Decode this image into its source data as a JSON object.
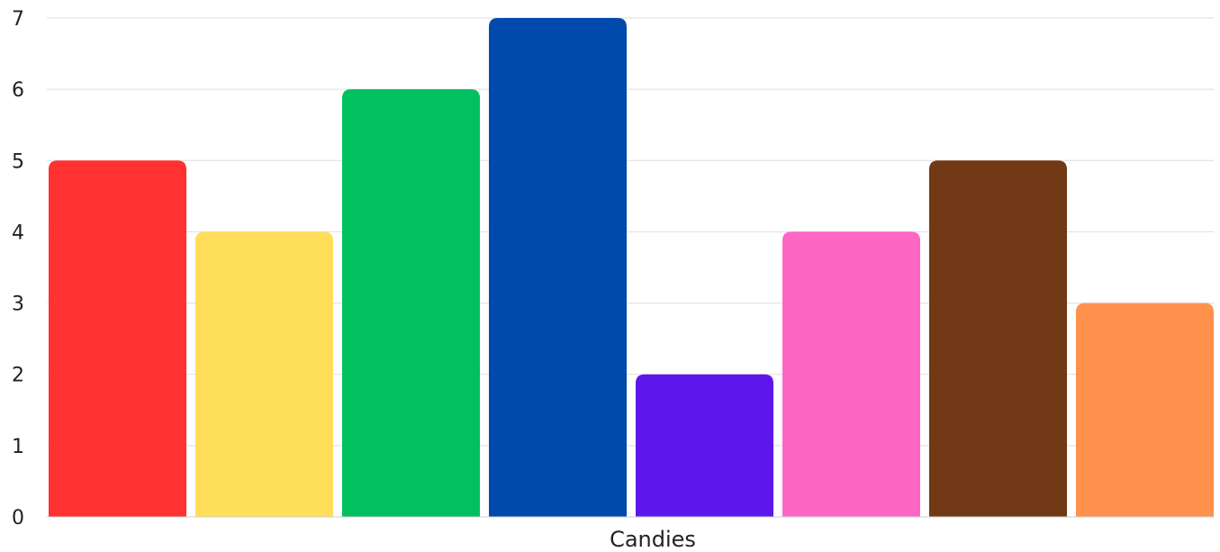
{
  "chart_data": {
    "type": "bar",
    "title": "",
    "xlabel": "Candies",
    "ylabel": "",
    "ylim": [
      0,
      7
    ],
    "yticks": [
      "0",
      "1",
      "2",
      "3",
      "4",
      "5",
      "6",
      "7"
    ],
    "grid": true,
    "legend": "none",
    "values": [
      5,
      4,
      6,
      7,
      2,
      4,
      5,
      3
    ],
    "colors": [
      "#ff3131",
      "#ffde59",
      "#00c05f",
      "#004aad",
      "#5e17eb",
      "#ff66c4",
      "#713915",
      "#ff914d"
    ]
  }
}
